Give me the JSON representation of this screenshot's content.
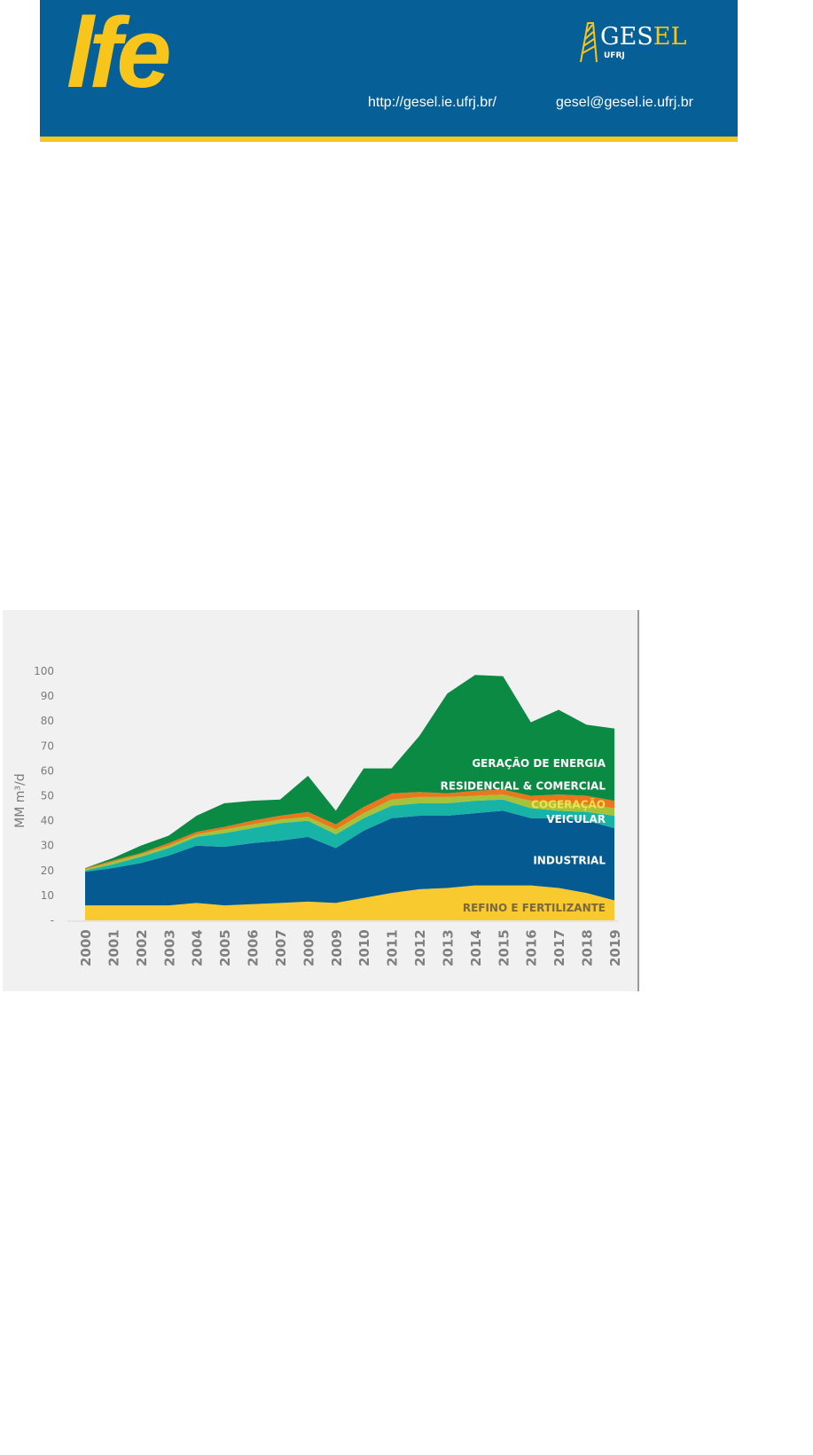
{
  "header": {
    "logo_text": "lfe",
    "org_name_main": "GES",
    "org_name_accent": "EL",
    "org_sub": "UFRJ",
    "website": "http://gesel.ie.ufrj.br/",
    "email": "gesel@gesel.ie.ufrj.br"
  },
  "chart_data": {
    "type": "area",
    "stacked": true,
    "title": "",
    "xlabel": "",
    "ylabel": "MM m³/d",
    "ylim": [
      0,
      100
    ],
    "yticks": [
      "-",
      "10",
      "20",
      "30",
      "40",
      "50",
      "60",
      "70",
      "80",
      "90",
      "100"
    ],
    "x": [
      "2000",
      "2001",
      "2002",
      "2003",
      "2004",
      "2005",
      "2006",
      "2007",
      "2008",
      "2009",
      "2010",
      "2011",
      "2012",
      "2013",
      "2014",
      "2015",
      "2016",
      "2017",
      "2018",
      "2019"
    ],
    "series": [
      {
        "name": "REFINO E FERTILIZANTE",
        "color": "#f9c930",
        "label_color": "#7a6a3a",
        "values": [
          6,
          6,
          6,
          6,
          7,
          6,
          6.5,
          7,
          7.5,
          7,
          9,
          11,
          12.5,
          13,
          14,
          14,
          14,
          13,
          11,
          8
        ]
      },
      {
        "name": "INDUSTRIAL",
        "color": "#045a91",
        "label_color": "#ffffff",
        "values": [
          13.5,
          15,
          17,
          20,
          23,
          23.5,
          24.5,
          25,
          26,
          22,
          27,
          30,
          29.5,
          29,
          29,
          30,
          27,
          28,
          29,
          29
        ]
      },
      {
        "name": "VEICULAR",
        "color": "#17b3a6",
        "label_color": "#ffffff",
        "values": [
          0.5,
          1.5,
          2.5,
          3,
          3.5,
          5.5,
          6,
          7,
          6.5,
          5.5,
          5,
          5,
          5,
          5,
          5,
          4.5,
          4,
          3,
          3.5,
          5
        ]
      },
      {
        "name": "COGERAÇÃO",
        "color": "#a4c23a",
        "label_color": "#f7e04a",
        "values": [
          0.5,
          1,
          1,
          1,
          1,
          1.5,
          1.5,
          1.5,
          1.5,
          2,
          2,
          2.5,
          2.5,
          2.5,
          2,
          2,
          3,
          3.5,
          3,
          3
        ]
      },
      {
        "name": "RESIDENCIAL & COMERCIAL",
        "color": "#e8771e",
        "label_color": "#ffffff",
        "values": [
          0.5,
          0.5,
          0.5,
          1,
          1,
          1,
          1.5,
          1.5,
          2,
          2,
          2.5,
          2.5,
          2,
          1.5,
          2,
          2,
          2,
          3,
          3.5,
          3
        ]
      },
      {
        "name": "GERAÇÃO DE ENERGIA",
        "color": "#0a8a42",
        "label_color": "#ffffff",
        "values": [
          0,
          1,
          3,
          3,
          6.5,
          9.5,
          8,
          6.5,
          14.5,
          5.5,
          15.5,
          10,
          22.5,
          40,
          46.5,
          45.5,
          29.5,
          34,
          28.5,
          29
        ]
      }
    ],
    "grid": false,
    "legend": "inline-right"
  }
}
